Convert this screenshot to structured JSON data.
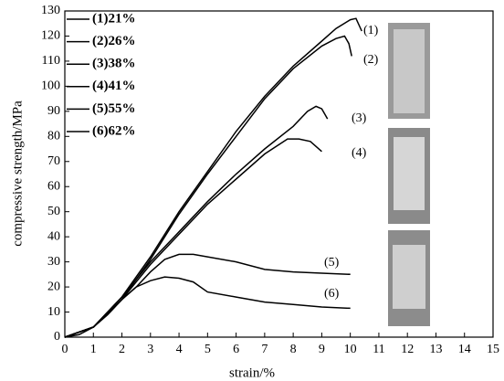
{
  "chart_data": {
    "type": "line",
    "x_label": "strain/%",
    "y_label": "compressive strength/MPa",
    "xlim": [
      0,
      15
    ],
    "xticks": [
      0,
      1,
      2,
      3,
      4,
      5,
      6,
      7,
      8,
      9,
      10,
      11,
      12,
      13,
      14,
      15
    ],
    "ylim": [
      0,
      130
    ],
    "yticks": [
      0,
      10,
      20,
      30,
      40,
      50,
      60,
      70,
      80,
      90,
      100,
      110,
      120,
      130
    ],
    "series": [
      {
        "name": "(1)21%",
        "label": "(1)",
        "color": "#000000",
        "x": [
          0,
          0.5,
          1,
          2,
          3,
          4,
          5,
          6,
          7,
          8,
          9,
          9.5,
          10,
          10.2,
          10.4
        ],
        "values": [
          0,
          1,
          4,
          16,
          32,
          50,
          66,
          82,
          96,
          108,
          118,
          123,
          126.5,
          127,
          122
        ]
      },
      {
        "name": "(2)26%",
        "label": "(2)",
        "color": "#000000",
        "x": [
          0,
          1,
          2,
          3,
          4,
          5,
          6,
          7,
          8,
          9,
          9.5,
          9.8,
          9.95,
          10.05
        ],
        "values": [
          0,
          4,
          15,
          31,
          49,
          65,
          80,
          95,
          107,
          116,
          119,
          120,
          117,
          112
        ]
      },
      {
        "name": "(3)38%",
        "label": "(3)",
        "color": "#000000",
        "x": [
          0,
          1,
          2,
          3,
          4,
          5,
          6,
          7,
          8,
          8.5,
          8.8,
          9,
          9.2
        ],
        "values": [
          0,
          4,
          16,
          30,
          42,
          54,
          65,
          75,
          84,
          90,
          92,
          91,
          87
        ]
      },
      {
        "name": "(4)41%",
        "label": "(4)",
        "color": "#000000",
        "x": [
          0,
          1,
          2,
          3,
          4,
          5,
          6,
          7,
          7.8,
          8.2,
          8.6,
          9
        ],
        "values": [
          0,
          4,
          15,
          29,
          41,
          53,
          63,
          73,
          79,
          79,
          78,
          74
        ]
      },
      {
        "name": "(5)55%",
        "label": "(5)",
        "color": "#000000",
        "x": [
          0,
          1,
          1.5,
          2,
          2.5,
          3,
          3.5,
          4,
          4.5,
          5,
          6,
          7,
          8,
          9,
          10
        ],
        "values": [
          0,
          4,
          9,
          15,
          20,
          26,
          31,
          33,
          33,
          32,
          30,
          27,
          26,
          25.5,
          25
        ]
      },
      {
        "name": "(6)62%",
        "label": "(6)",
        "color": "#000000",
        "x": [
          0,
          1,
          1.5,
          2,
          2.5,
          3,
          3.5,
          4,
          4.5,
          5,
          6,
          7,
          8,
          9,
          10
        ],
        "values": [
          0,
          4,
          9,
          15,
          20,
          22.5,
          24,
          23.5,
          22,
          18,
          16,
          14,
          13,
          12,
          11.5
        ]
      }
    ]
  }
}
